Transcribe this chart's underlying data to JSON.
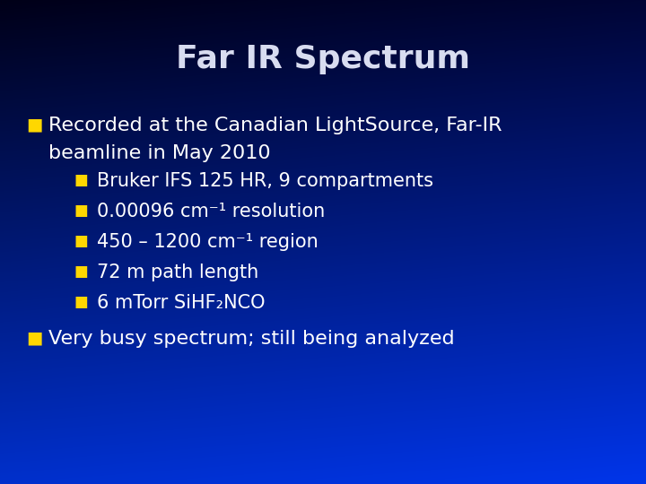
{
  "title": "Far IR Spectrum",
  "title_color": "#D8DCF0",
  "title_fontsize": 26,
  "background_top": "#000818",
  "background_mid": "#001880",
  "background_bot": "#0030CC",
  "bullet_color": "#FFD700",
  "text_color": "#FFFFFF",
  "bullet1_line1": "Recorded at the Canadian LightSource, Far-IR",
  "bullet1_line2": "beamline in May 2010",
  "sub_bullets": [
    "Bruker IFS 125 HR, 9 compartments",
    "0.00096 cm⁻¹ resolution",
    "450 – 1200 cm⁻¹ region",
    "72 m path length",
    "6 mTorr SiHF₂NCO"
  ],
  "bullet2_text": "Very busy spectrum; still being analyzed",
  "main_fontsize": 16,
  "sub_fontsize": 15,
  "figsize": [
    7.2,
    5.4
  ],
  "dpi": 100
}
